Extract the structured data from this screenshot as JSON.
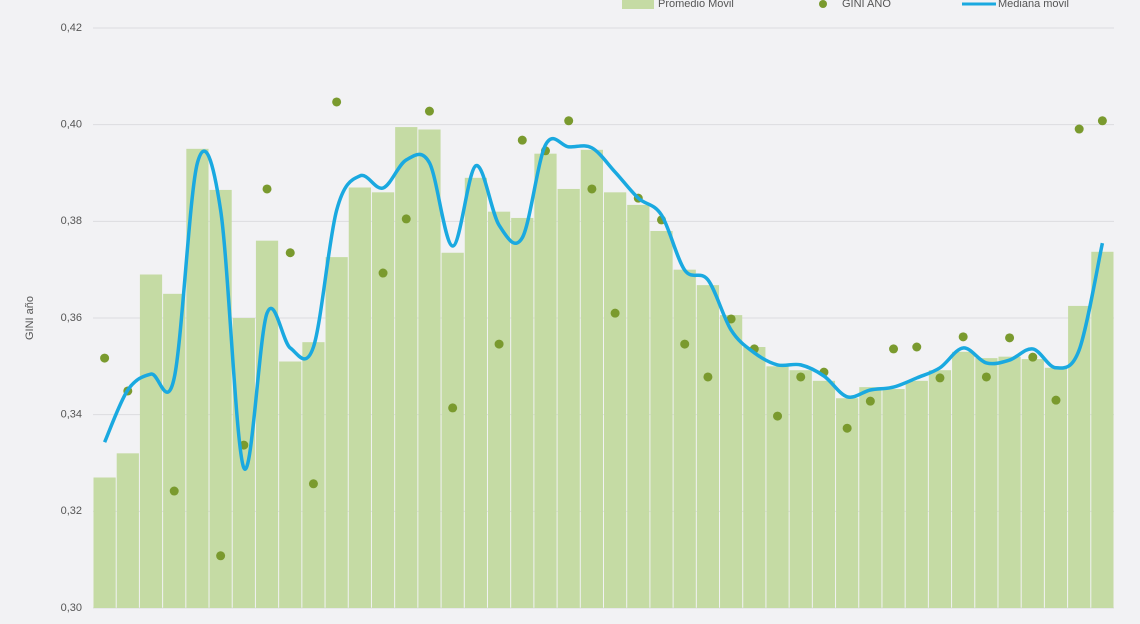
{
  "chart_data": {
    "type": "bar-dot-line",
    "y_label": "GINI año",
    "categories": [
      null,
      null,
      null,
      null,
      null,
      null,
      null,
      null,
      null,
      null,
      null,
      null,
      null,
      null,
      null,
      null,
      null,
      null,
      null,
      null,
      null,
      null,
      null,
      null,
      null,
      null,
      null,
      null,
      null,
      null,
      null,
      null,
      null,
      null,
      null,
      null,
      null,
      null,
      null,
      null,
      null,
      null,
      null,
      null
    ],
    "series": [
      {
        "name": "Promedio Movil",
        "type": "bar",
        "color": "#c5dba4",
        "values": [
          0.327,
          0.332,
          0.369,
          0.365,
          0.395,
          0.3865,
          0.36,
          0.376,
          0.351,
          0.355,
          0.3726,
          0.387,
          0.386,
          0.3995,
          0.399,
          0.3735,
          0.389,
          0.382,
          0.3807,
          0.394,
          0.3867,
          0.3948,
          0.386,
          0.3834,
          0.378,
          0.37,
          0.3668,
          0.3606,
          0.354,
          0.35,
          0.3492,
          0.347,
          0.3434,
          0.3457,
          0.3453,
          0.347,
          0.3492,
          0.353,
          0.3517,
          0.352,
          0.3515,
          0.3497,
          0.3625,
          0.3737
        ]
      },
      {
        "name": "GINI AÑO",
        "type": "dot",
        "color": "#7a9a2e",
        "values": [
          0.3517,
          0.3449,
          null,
          0.3242,
          null,
          0.3108,
          0.3337,
          0.3867,
          0.3735,
          0.3257,
          0.4047,
          null,
          0.3693,
          0.3805,
          0.4028,
          0.3414,
          null,
          0.3546,
          0.3968,
          0.3946,
          0.4008,
          0.3867,
          0.361,
          0.3848,
          0.3803,
          0.3546,
          0.3478,
          0.3598,
          0.3536,
          0.3397,
          0.3478,
          0.3488,
          0.3372,
          0.3428,
          0.3536,
          0.354,
          0.3476,
          0.3561,
          0.3478,
          0.3559,
          0.3519,
          0.343,
          0.3991,
          0.4008
        ]
      },
      {
        "name": "Mediana movil",
        "type": "line",
        "color": "#1aa9e0",
        "values": [
          0.3343,
          0.3451,
          0.3484,
          0.3476,
          0.3921,
          0.3823,
          0.329,
          0.361,
          0.3538,
          0.354,
          0.3823,
          0.3894,
          0.3869,
          0.3927,
          0.3921,
          0.3749,
          0.3915,
          0.3792,
          0.3766,
          0.3958,
          0.3954,
          0.3952,
          0.3902,
          0.3848,
          0.3813,
          0.3699,
          0.3679,
          0.3575,
          0.3528,
          0.3503,
          0.3503,
          0.348,
          0.3437,
          0.3451,
          0.3457,
          0.3476,
          0.3497,
          0.3538,
          0.3507,
          0.3513,
          0.3536,
          0.3497,
          0.3534,
          0.3755
        ]
      }
    ],
    "ylim": [
      0.3,
      0.42
    ],
    "yticks": [
      {
        "value": 0.3,
        "label": "0,30"
      },
      {
        "value": 0.32,
        "label": "0,32"
      },
      {
        "value": 0.34,
        "label": "0,34"
      },
      {
        "value": 0.36,
        "label": "0,36"
      },
      {
        "value": 0.38,
        "label": "0,38"
      },
      {
        "value": 0.4,
        "label": "0,40"
      },
      {
        "value": 0.42,
        "label": "0,42"
      }
    ],
    "grid": true
  }
}
